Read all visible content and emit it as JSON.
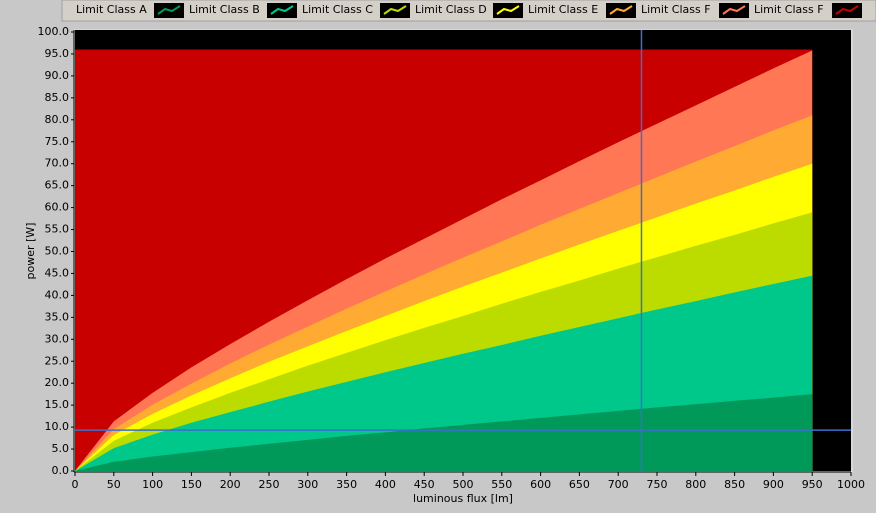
{
  "chart_data": {
    "type": "area",
    "xlabel": "luminous flux [lm]",
    "ylabel": "power [W]",
    "x": [
      0,
      50,
      100,
      150,
      200,
      250,
      300,
      350,
      400,
      450,
      500,
      550,
      600,
      650,
      700,
      750,
      800,
      850,
      900,
      950
    ],
    "series": [
      {
        "name": "Limit Class A",
        "color": "#00995a",
        "values": [
          0,
          2.1,
          3.3,
          4.3,
          5.3,
          6.2,
          7.1,
          8.0,
          8.8,
          9.7,
          10.5,
          11.3,
          12.1,
          12.9,
          13.7,
          14.5,
          15.2,
          16.0,
          16.7,
          17.5
        ]
      },
      {
        "name": "Limit Class B",
        "color": "#00c88a",
        "values": [
          0,
          5.2,
          8.3,
          11.0,
          13.4,
          15.8,
          18.1,
          20.3,
          22.5,
          24.6,
          26.7,
          28.7,
          30.8,
          32.8,
          34.8,
          36.8,
          38.7,
          40.7,
          42.6,
          44.5
        ]
      },
      {
        "name": "Limit Class C",
        "color": "#bcdc00",
        "values": [
          0,
          6.9,
          11.0,
          14.5,
          17.8,
          20.9,
          24.0,
          26.9,
          29.8,
          32.6,
          35.3,
          38.1,
          40.8,
          43.4,
          46.1,
          48.7,
          51.3,
          53.8,
          56.4,
          58.9
        ]
      },
      {
        "name": "Limit Class D",
        "color": "#ffff00",
        "values": [
          0,
          8.2,
          13.0,
          17.2,
          21.1,
          24.9,
          28.4,
          31.9,
          35.3,
          38.7,
          42.0,
          45.2,
          48.4,
          51.6,
          54.7,
          57.8,
          60.9,
          63.9,
          67.0,
          70.0
        ]
      },
      {
        "name": "Limit Class E",
        "color": "#ffaa33",
        "values": [
          0,
          9.5,
          15.1,
          19.9,
          24.5,
          28.8,
          32.9,
          37.0,
          40.9,
          44.8,
          48.6,
          52.3,
          56.1,
          59.7,
          63.3,
          66.9,
          70.5,
          74.0,
          77.6,
          81.0
        ]
      },
      {
        "name": "Limit Class F",
        "color": "#ff7755",
        "values": [
          0,
          11.3,
          17.8,
          23.6,
          28.9,
          34.0,
          38.9,
          43.7,
          48.4,
          52.9,
          57.4,
          61.9,
          66.2,
          70.6,
          74.9,
          79.1,
          83.3,
          87.5,
          91.7,
          95.8
        ]
      },
      {
        "name": "Limit Class F",
        "color": "#c80000",
        "values": [
          96,
          96,
          96,
          96,
          96,
          96,
          96,
          96,
          96,
          96,
          96,
          96,
          96,
          96,
          96,
          96,
          96,
          96,
          96,
          96
        ]
      }
    ],
    "xlim": [
      0,
      1000
    ],
    "ylim": [
      0,
      100
    ],
    "xticks": [
      0,
      50,
      100,
      150,
      200,
      250,
      300,
      350,
      400,
      450,
      500,
      550,
      600,
      650,
      700,
      750,
      800,
      850,
      900,
      950,
      1000
    ],
    "yticks": [
      {
        "value": 0,
        "label": "0.0"
      },
      {
        "value": 5,
        "label": "5.0"
      },
      {
        "value": 10,
        "label": "10.0"
      },
      {
        "value": 15,
        "label": "15.0"
      },
      {
        "value": 20,
        "label": "20.0"
      },
      {
        "value": 25,
        "label": "25.0"
      },
      {
        "value": 30,
        "label": "30.0"
      },
      {
        "value": 35,
        "label": "35.0"
      },
      {
        "value": 40,
        "label": "40.0"
      },
      {
        "value": 45,
        "label": "45.0"
      },
      {
        "value": 50,
        "label": "50.0"
      },
      {
        "value": 55,
        "label": "55.0"
      },
      {
        "value": 60,
        "label": "60.0"
      },
      {
        "value": 65,
        "label": "65.0"
      },
      {
        "value": 70,
        "label": "70.0"
      },
      {
        "value": 75,
        "label": "75.0"
      },
      {
        "value": 80,
        "label": "80.0"
      },
      {
        "value": 85,
        "label": "85.0"
      },
      {
        "value": 90,
        "label": "90.0"
      },
      {
        "value": 95,
        "label": "95.0"
      },
      {
        "value": 100,
        "label": "100.0"
      }
    ],
    "cursor": {
      "x": 730,
      "y": 9.3,
      "color": "#3a6fd0"
    },
    "background": "#000000"
  }
}
